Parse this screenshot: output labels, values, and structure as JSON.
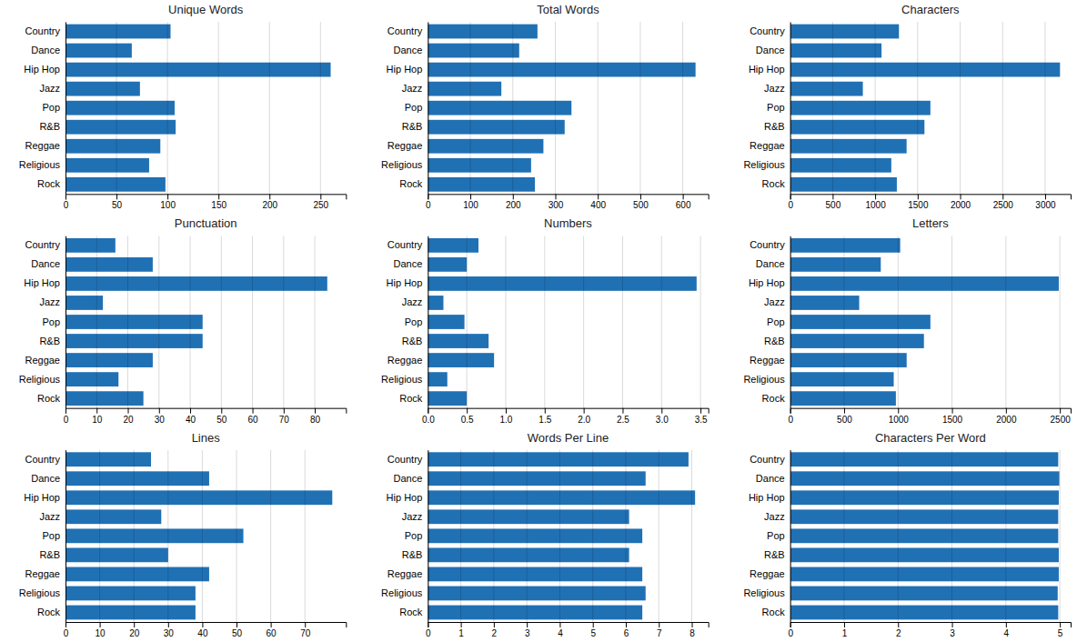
{
  "chart_data": [
    {
      "type": "bar",
      "orientation": "horizontal",
      "title": "Unique Words",
      "categories": [
        "Country",
        "Dance",
        "Hip Hop",
        "Jazz",
        "Pop",
        "R&B",
        "Reggae",
        "Religious",
        "Rock"
      ],
      "values": [
        103,
        65,
        260,
        73,
        107,
        108,
        93,
        82,
        98
      ],
      "color": "#2070b4",
      "xlim": [
        0,
        275
      ],
      "xticks": [
        0,
        50,
        100,
        150,
        200,
        250
      ],
      "grid": true
    },
    {
      "type": "bar",
      "orientation": "horizontal",
      "title": "Total Words",
      "categories": [
        "Country",
        "Dance",
        "Hip Hop",
        "Jazz",
        "Pop",
        "R&B",
        "Reggae",
        "Religious",
        "Rock"
      ],
      "values": [
        258,
        215,
        630,
        173,
        338,
        322,
        272,
        243,
        252
      ],
      "color": "#2070b4",
      "xlim": [
        0,
        660
      ],
      "xticks": [
        0,
        100,
        200,
        300,
        400,
        500,
        600
      ],
      "grid": true
    },
    {
      "type": "bar",
      "orientation": "horizontal",
      "title": "Characters",
      "categories": [
        "Country",
        "Dance",
        "Hip Hop",
        "Jazz",
        "Pop",
        "R&B",
        "Reggae",
        "Religious",
        "Rock"
      ],
      "values": [
        1280,
        1075,
        3175,
        855,
        1650,
        1580,
        1370,
        1190,
        1255
      ],
      "color": "#2070b4",
      "xlim": [
        0,
        3300
      ],
      "xticks": [
        0,
        500,
        1000,
        1500,
        2000,
        2500,
        3000
      ],
      "grid": true
    },
    {
      "type": "bar",
      "orientation": "horizontal",
      "title": "Punctuation",
      "categories": [
        "Country",
        "Dance",
        "Hip Hop",
        "Jazz",
        "Pop",
        "R&B",
        "Reggae",
        "Religious",
        "Rock"
      ],
      "values": [
        16,
        28,
        84,
        12,
        44,
        44,
        28,
        17,
        25
      ],
      "color": "#2070b4",
      "xlim": [
        0,
        90
      ],
      "xticks": [
        0,
        10,
        20,
        30,
        40,
        50,
        60,
        70,
        80
      ],
      "grid": true
    },
    {
      "type": "bar",
      "orientation": "horizontal",
      "title": "Numbers",
      "categories": [
        "Country",
        "Dance",
        "Hip Hop",
        "Jazz",
        "Pop",
        "R&B",
        "Reggae",
        "Religious",
        "Rock"
      ],
      "values": [
        0.65,
        0.5,
        3.45,
        0.2,
        0.47,
        0.78,
        0.85,
        0.25,
        0.5
      ],
      "color": "#2070b4",
      "xlim": [
        0,
        3.6
      ],
      "xticks": [
        {
          "value": 0,
          "label": "0.0"
        },
        0.5,
        {
          "value": 1,
          "label": "1.0"
        },
        1.5,
        {
          "value": 2,
          "label": "2.0"
        },
        2.5,
        {
          "value": 3,
          "label": "3.0"
        },
        3.5
      ],
      "grid": true
    },
    {
      "type": "bar",
      "orientation": "horizontal",
      "title": "Letters",
      "categories": [
        "Country",
        "Dance",
        "Hip Hop",
        "Jazz",
        "Pop",
        "R&B",
        "Reggae",
        "Religious",
        "Rock"
      ],
      "values": [
        1020,
        840,
        2490,
        640,
        1300,
        1240,
        1080,
        960,
        980
      ],
      "color": "#2070b4",
      "xlim": [
        0,
        2600
      ],
      "xticks": [
        0,
        500,
        1000,
        1500,
        2000,
        2500
      ],
      "grid": true
    },
    {
      "type": "bar",
      "orientation": "horizontal",
      "title": "Lines",
      "categories": [
        "Country",
        "Dance",
        "Hip Hop",
        "Jazz",
        "Pop",
        "R&B",
        "Reggae",
        "Religious",
        "Rock"
      ],
      "values": [
        25,
        42,
        78,
        28,
        52,
        30,
        42,
        38,
        38
      ],
      "color": "#2070b4",
      "xlim": [
        0,
        82
      ],
      "xticks": [
        0,
        10,
        20,
        30,
        40,
        50,
        60,
        70
      ],
      "grid": true
    },
    {
      "type": "bar",
      "orientation": "horizontal",
      "title": "Words Per Line",
      "categories": [
        "Country",
        "Dance",
        "Hip Hop",
        "Jazz",
        "Pop",
        "R&B",
        "Reggae",
        "Religious",
        "Rock"
      ],
      "values": [
        7.9,
        6.6,
        8.1,
        6.1,
        6.5,
        6.1,
        6.5,
        6.6,
        6.5
      ],
      "color": "#2070b4",
      "xlim": [
        0,
        8.5
      ],
      "xticks": [
        0,
        1,
        2,
        3,
        4,
        5,
        6,
        7,
        8
      ],
      "grid": true
    },
    {
      "type": "bar",
      "orientation": "horizontal",
      "title": "Characters Per Word",
      "categories": [
        "Country",
        "Dance",
        "Hip Hop",
        "Jazz",
        "Pop",
        "R&B",
        "Reggae",
        "Religious",
        "Rock"
      ],
      "values": [
        4.97,
        4.99,
        4.98,
        4.97,
        4.97,
        4.98,
        4.98,
        4.96,
        4.97
      ],
      "color": "#2070b4",
      "xlim": [
        0,
        5.2
      ],
      "xticks": [
        0,
        1,
        2,
        3,
        4,
        5
      ],
      "grid": true
    }
  ]
}
